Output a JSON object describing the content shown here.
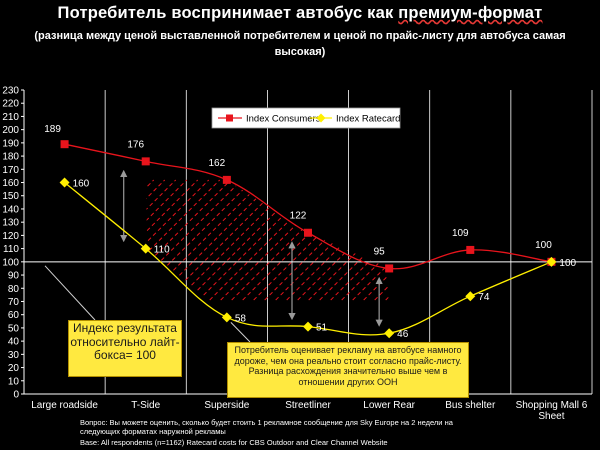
{
  "header": {
    "title_pre": "Потребитель воспринимает автобус как ",
    "title_link": "премиум-формат",
    "subtitle": "(разница между ценой выставленной потребителем и ценой по прайс-листу для автобуса самая высокая)"
  },
  "notes": {
    "callout_left": "Индекс результата относительно лайт-бокса= 100",
    "callout_right": "Потребитель оценивает рекламу на автобусе намного дороже, чем она реально стоит согласно прайс-листу. Разница расхождения значительно выше чем в отношении других OOH",
    "footnote": "Вопрос: Вы можете оценить, сколько будет стоить 1 рекламное сообщение для Sky Europe на 2 недели на следующих форматах наружной рекламы",
    "base": "Base: All respondents (n=1162)   Ratecard costs for CBS Outdoor and Clear Channel Website"
  },
  "colors": {
    "consumers": "#e8141c",
    "ratecard": "#ffef00",
    "hatch": "#e8141c",
    "callout_bg": "#ffe940"
  },
  "chart_data": {
    "type": "line",
    "title": "Потребитель воспринимает автобус как премиум-формат",
    "categories": [
      "Large roadside",
      "T-Side",
      "Superside",
      "Streetliner",
      "Lower Rear",
      "Bus shelter",
      "Shopping Mall 6 Sheet"
    ],
    "series": [
      {
        "name": "Index Consumers",
        "color": "#e8141c",
        "marker": "square",
        "values": [
          189,
          176,
          162,
          122,
          95,
          109,
          100
        ]
      },
      {
        "name": "Index Ratecard",
        "color": "#ffef00",
        "marker": "diamond",
        "values": [
          160,
          110,
          58,
          51,
          46,
          74,
          100
        ]
      }
    ],
    "ylim": [
      0,
      230
    ],
    "yticks": [
      0,
      10,
      20,
      30,
      40,
      50,
      60,
      70,
      80,
      90,
      100,
      110,
      120,
      130,
      140,
      150,
      160,
      170,
      180,
      190,
      200,
      210,
      220,
      230
    ],
    "reference_line": 100,
    "grid": "vertical",
    "legend": "top-center"
  }
}
